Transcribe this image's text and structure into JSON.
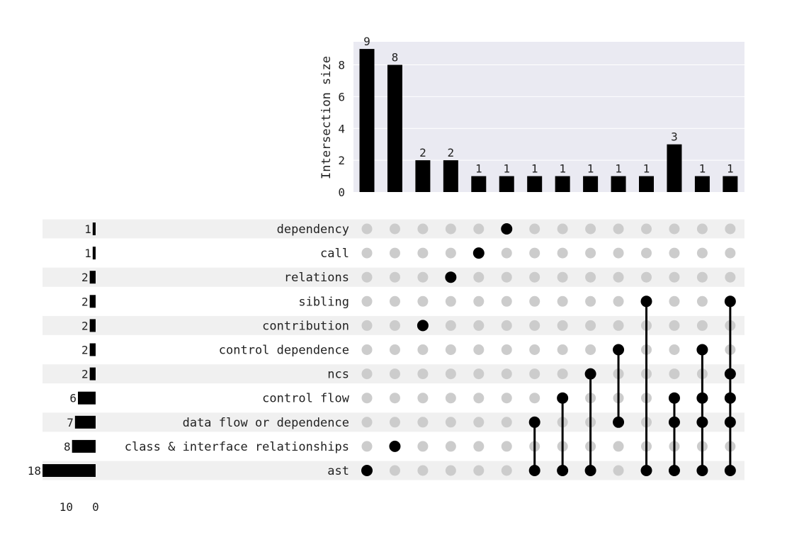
{
  "chart_data": {
    "type": "upset",
    "ylabel": "Intersection size",
    "ylim": [
      0,
      9.45
    ],
    "y_ticks": [
      0,
      2,
      4,
      6,
      8
    ],
    "set_size_ticks": [
      10,
      0
    ],
    "grid": true,
    "sets": [
      {
        "name": "dependency",
        "size": 1
      },
      {
        "name": "call",
        "size": 1
      },
      {
        "name": "relations",
        "size": 2
      },
      {
        "name": "sibling",
        "size": 2
      },
      {
        "name": "contribution",
        "size": 2
      },
      {
        "name": "control dependence",
        "size": 2
      },
      {
        "name": "ncs",
        "size": 2
      },
      {
        "name": "control flow",
        "size": 6
      },
      {
        "name": "data flow or dependence",
        "size": 7
      },
      {
        "name": "class & interface relationships",
        "size": 8
      },
      {
        "name": "ast",
        "size": 18
      }
    ],
    "intersections": [
      {
        "size": 9,
        "members": [
          "ast"
        ]
      },
      {
        "size": 8,
        "members": [
          "class & interface relationships"
        ]
      },
      {
        "size": 2,
        "members": [
          "contribution"
        ]
      },
      {
        "size": 2,
        "members": [
          "relations"
        ]
      },
      {
        "size": 1,
        "members": [
          "call"
        ]
      },
      {
        "size": 1,
        "members": [
          "dependency"
        ]
      },
      {
        "size": 1,
        "members": [
          "data flow or dependence",
          "ast"
        ]
      },
      {
        "size": 1,
        "members": [
          "control flow",
          "ast"
        ]
      },
      {
        "size": 1,
        "members": [
          "ncs",
          "ast"
        ]
      },
      {
        "size": 1,
        "members": [
          "control dependence",
          "data flow or dependence"
        ]
      },
      {
        "size": 1,
        "members": [
          "sibling",
          "ast"
        ]
      },
      {
        "size": 3,
        "members": [
          "control flow",
          "data flow or dependence",
          "ast"
        ]
      },
      {
        "size": 1,
        "members": [
          "control dependence",
          "control flow",
          "data flow or dependence",
          "ast"
        ]
      },
      {
        "size": 1,
        "members": [
          "sibling",
          "ncs",
          "control flow",
          "data flow or dependence",
          "ast"
        ]
      }
    ],
    "colors": {
      "bar": "#000000",
      "panel_bg": "#eaeaf2",
      "stripe": "#f0f0f0",
      "dot_inactive": "#cccccc",
      "dot_active": "#000000",
      "gridline": "#ffffff"
    }
  }
}
